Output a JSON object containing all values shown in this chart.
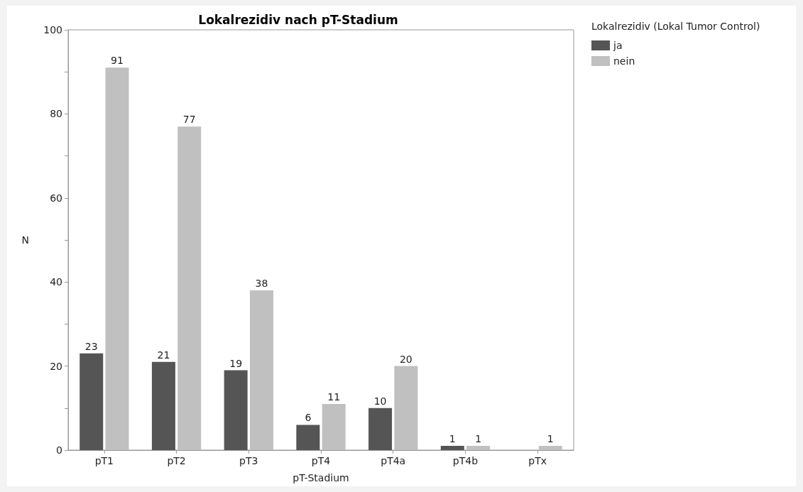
{
  "chart_data": {
    "type": "bar",
    "title": "Lokalrezidiv nach pT-Stadium",
    "xlabel": "pT-Stadium",
    "ylabel": "N",
    "legend_title": "Lokalrezidiv (Lokal Tumor Control)",
    "categories": [
      "pT1",
      "pT2",
      "pT3",
      "pT4",
      "pT4a",
      "pT4b",
      "pTx"
    ],
    "series": [
      {
        "name": "ja",
        "color": "#555555",
        "values": [
          23,
          21,
          19,
          6,
          10,
          1,
          null
        ]
      },
      {
        "name": "nein",
        "color": "#c0c0c0",
        "values": [
          91,
          77,
          38,
          11,
          20,
          1,
          1
        ]
      }
    ],
    "ylim": [
      0,
      100
    ],
    "yticks": [
      0,
      {
        "value": 10,
        "label": null
      },
      20,
      {
        "value": 30,
        "label": null
      },
      40,
      {
        "value": 50,
        "label": null
      },
      60,
      {
        "value": 70,
        "label": null
      },
      80,
      {
        "value": 90,
        "label": null
      },
      100
    ],
    "data_labels": true,
    "grid": false,
    "legend": "top right"
  }
}
